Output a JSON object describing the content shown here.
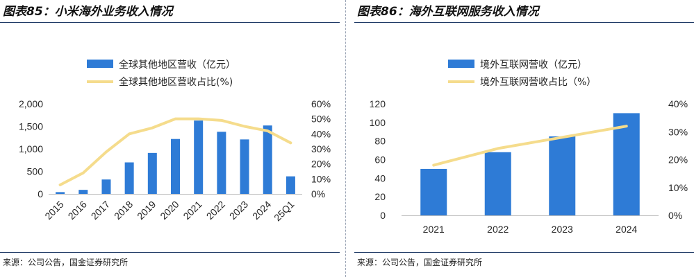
{
  "left": {
    "title": "图表85：小米海外业务收入情况",
    "source": "来源：公司公告，国金证券研究所"
  },
  "right": {
    "title": "图表86：海外互联网服务收入情况",
    "source": "来源：公司公告，国金证券研究所"
  },
  "colors": {
    "bar": "#2e7bd6",
    "line": "#f5dc8c",
    "rule": "#1f3a66"
  },
  "chart_data": [
    {
      "type": "bar+line",
      "categories": [
        "2015",
        "2016",
        "2017",
        "2018",
        "2019",
        "2020",
        "2021",
        "2022",
        "2023",
        "2024",
        "25Q1"
      ],
      "series": [
        {
          "name": "全球其他地区营收（亿元）",
          "kind": "bar",
          "axis": "left",
          "values": [
            40,
            90,
            320,
            700,
            910,
            1220,
            1630,
            1380,
            1210,
            1520,
            390
          ]
        },
        {
          "name": "全球其他地区营收占比(%)",
          "kind": "line",
          "axis": "right",
          "values": [
            6,
            14,
            28,
            40,
            44,
            50,
            50,
            49,
            45,
            42,
            34
          ]
        }
      ],
      "y_left": {
        "min": 0,
        "max": 2000,
        "ticks": [
          "0",
          "500",
          "1,000",
          "1,500",
          "2,000"
        ]
      },
      "y_right": {
        "min": 0,
        "max": 60,
        "ticks": [
          "0%",
          "10%",
          "20%",
          "30%",
          "40%",
          "50%",
          "60%"
        ]
      },
      "xlabel": "",
      "ylabel": ""
    },
    {
      "type": "bar+line",
      "categories": [
        "2021",
        "2022",
        "2023",
        "2024"
      ],
      "series": [
        {
          "name": "境外互联网营收（亿元）",
          "kind": "bar",
          "axis": "left",
          "values": [
            50,
            68,
            85,
            110
          ]
        },
        {
          "name": "境外互联网营收占比（%）",
          "kind": "line",
          "axis": "right",
          "values": [
            18,
            24,
            28,
            32
          ]
        }
      ],
      "y_left": {
        "min": 0,
        "max": 120,
        "ticks": [
          "0",
          "20",
          "40",
          "60",
          "80",
          "100",
          "120"
        ]
      },
      "y_right": {
        "min": 0,
        "max": 40,
        "ticks": [
          "0%",
          "10%",
          "20%",
          "30%",
          "40%"
        ]
      },
      "xlabel": "",
      "ylabel": ""
    }
  ]
}
